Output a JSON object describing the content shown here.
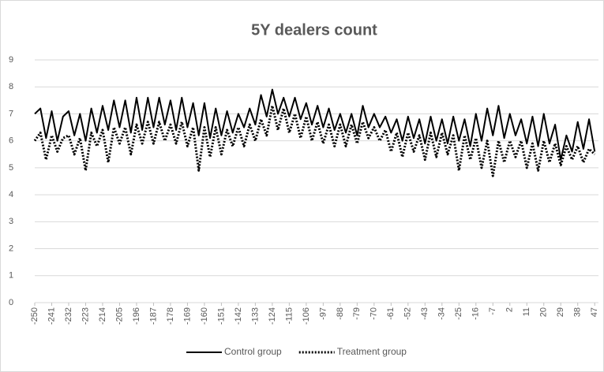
{
  "chart_data": {
    "type": "line",
    "title": "5Y dealers count",
    "x": [
      -250,
      -247,
      -244,
      -241,
      -238,
      -235,
      -232,
      -229,
      -226,
      -223,
      -220,
      -217,
      -214,
      -211,
      -208,
      -205,
      -202,
      -199,
      -196,
      -193,
      -190,
      -187,
      -184,
      -181,
      -178,
      -175,
      -172,
      -169,
      -166,
      -163,
      -160,
      -157,
      -154,
      -151,
      -148,
      -145,
      -142,
      -139,
      -136,
      -133,
      -130,
      -127,
      -124,
      -121,
      -118,
      -115,
      -112,
      -109,
      -106,
      -103,
      -100,
      -97,
      -94,
      -91,
      -88,
      -85,
      -82,
      -79,
      -76,
      -73,
      -70,
      -67,
      -64,
      -61,
      -58,
      -55,
      -52,
      -49,
      -46,
      -43,
      -40,
      -37,
      -34,
      -31,
      -28,
      -25,
      -22,
      -19,
      -16,
      -13,
      -10,
      -7,
      -4,
      -1,
      2,
      5,
      8,
      11,
      14,
      17,
      20,
      23,
      26,
      29,
      32,
      35,
      38,
      41,
      44,
      47
    ],
    "series": [
      {
        "name": "Control group",
        "color": "#000000",
        "style": "solid",
        "values": [
          7.0,
          7.2,
          6.1,
          7.1,
          6.0,
          6.9,
          7.1,
          6.2,
          7.0,
          6.0,
          7.2,
          6.3,
          7.3,
          6.4,
          7.5,
          6.5,
          7.5,
          6.3,
          7.6,
          6.4,
          7.6,
          6.5,
          7.6,
          6.6,
          7.5,
          6.4,
          7.6,
          6.5,
          7.4,
          6.2,
          7.4,
          6.1,
          7.2,
          6.2,
          7.1,
          6.3,
          7.0,
          6.5,
          7.2,
          6.6,
          7.7,
          6.9,
          7.9,
          7.0,
          7.6,
          6.9,
          7.6,
          6.8,
          7.4,
          6.6,
          7.3,
          6.5,
          7.2,
          6.4,
          7.0,
          6.3,
          7.0,
          6.2,
          7.3,
          6.5,
          7.0,
          6.5,
          6.9,
          6.3,
          6.8,
          6.0,
          6.9,
          6.1,
          6.8,
          5.9,
          6.9,
          6.0,
          6.8,
          5.9,
          6.9,
          6.0,
          6.8,
          5.8,
          7.0,
          6.0,
          7.2,
          6.2,
          7.3,
          6.1,
          7.0,
          6.2,
          6.8,
          5.9,
          6.9,
          5.8,
          7.0,
          5.9,
          6.6,
          5.3,
          6.2,
          5.6,
          6.7,
          5.7,
          6.8,
          5.6
        ]
      },
      {
        "name": "Treatment group",
        "color": "#000000",
        "style": "dotted",
        "values": [
          6.0,
          6.3,
          5.3,
          6.2,
          5.6,
          6.1,
          6.2,
          5.5,
          6.1,
          4.9,
          6.3,
          5.8,
          6.4,
          5.2,
          6.5,
          5.9,
          6.5,
          5.5,
          6.6,
          5.9,
          6.7,
          5.9,
          6.7,
          6.0,
          6.6,
          5.9,
          6.7,
          5.8,
          6.5,
          4.9,
          6.5,
          5.4,
          6.5,
          5.5,
          6.4,
          5.8,
          6.5,
          5.8,
          6.6,
          6.0,
          6.8,
          6.2,
          7.3,
          6.4,
          7.2,
          6.3,
          7.0,
          6.1,
          6.9,
          6.0,
          6.7,
          5.9,
          6.6,
          5.8,
          6.6,
          5.8,
          6.6,
          5.9,
          6.7,
          6.1,
          6.5,
          6.0,
          6.4,
          5.6,
          6.3,
          5.4,
          6.3,
          5.6,
          6.2,
          5.3,
          6.3,
          5.4,
          6.3,
          5.5,
          6.2,
          4.9,
          6.2,
          5.3,
          6.1,
          5.0,
          6.0,
          4.7,
          6.0,
          5.2,
          6.0,
          5.4,
          6.0,
          5.0,
          5.9,
          4.9,
          6.0,
          5.2,
          5.9,
          5.1,
          5.8,
          5.3,
          5.8,
          5.2,
          5.7,
          5.5
        ]
      }
    ],
    "xlim": [
      -250,
      49
    ],
    "xticks": [
      -250,
      -241,
      -232,
      -223,
      -214,
      -205,
      -196,
      -187,
      -178,
      -169,
      -160,
      -151,
      -142,
      -133,
      -124,
      -115,
      -106,
      -97,
      -88,
      -79,
      -70,
      -61,
      -52,
      -43,
      -34,
      -25,
      -16,
      -7,
      2,
      11,
      20,
      29,
      38,
      47
    ],
    "ylim": [
      0,
      9
    ],
    "yticks": [
      0,
      1,
      2,
      3,
      4,
      5,
      6,
      7,
      8,
      9
    ],
    "grid": true,
    "legend": "bottom"
  }
}
